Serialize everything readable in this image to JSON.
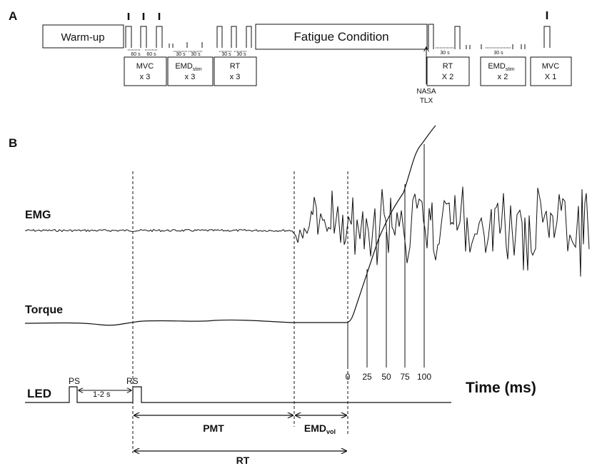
{
  "panel_a": {
    "label": "A",
    "warmup": "Warm-up",
    "fatigue": "Fatigue Condition",
    "mvc1": {
      "name": "MVC",
      "count": "x 3"
    },
    "emd1": {
      "name": "EMD",
      "sub": "stim",
      "count": "x 3"
    },
    "rt1": {
      "name": "RT",
      "count": "x 3"
    },
    "rt2": {
      "name": "RT",
      "count": "X 2"
    },
    "emd2": {
      "name": "EMD",
      "sub": "stim",
      "count": "x 2"
    },
    "mvc2": {
      "name": "MVC",
      "count": "X 1"
    },
    "interval_60": "60 s",
    "interval_30": "30 s",
    "nasa_line1": "NASA",
    "nasa_line2": "TLX"
  },
  "panel_b": {
    "label": "B",
    "emg": "EMG",
    "torque": "Torque",
    "led": "LED",
    "ps": "PS",
    "rs": "RS",
    "delay": "1-2 s",
    "pmt": "PMT",
    "emd_vol": "EMD",
    "emd_vol_sub": "vol",
    "rt": "RT",
    "time_axis_label": "Time (ms)",
    "time_ticks": [
      "0",
      "25",
      "50",
      "75",
      "100"
    ]
  }
}
